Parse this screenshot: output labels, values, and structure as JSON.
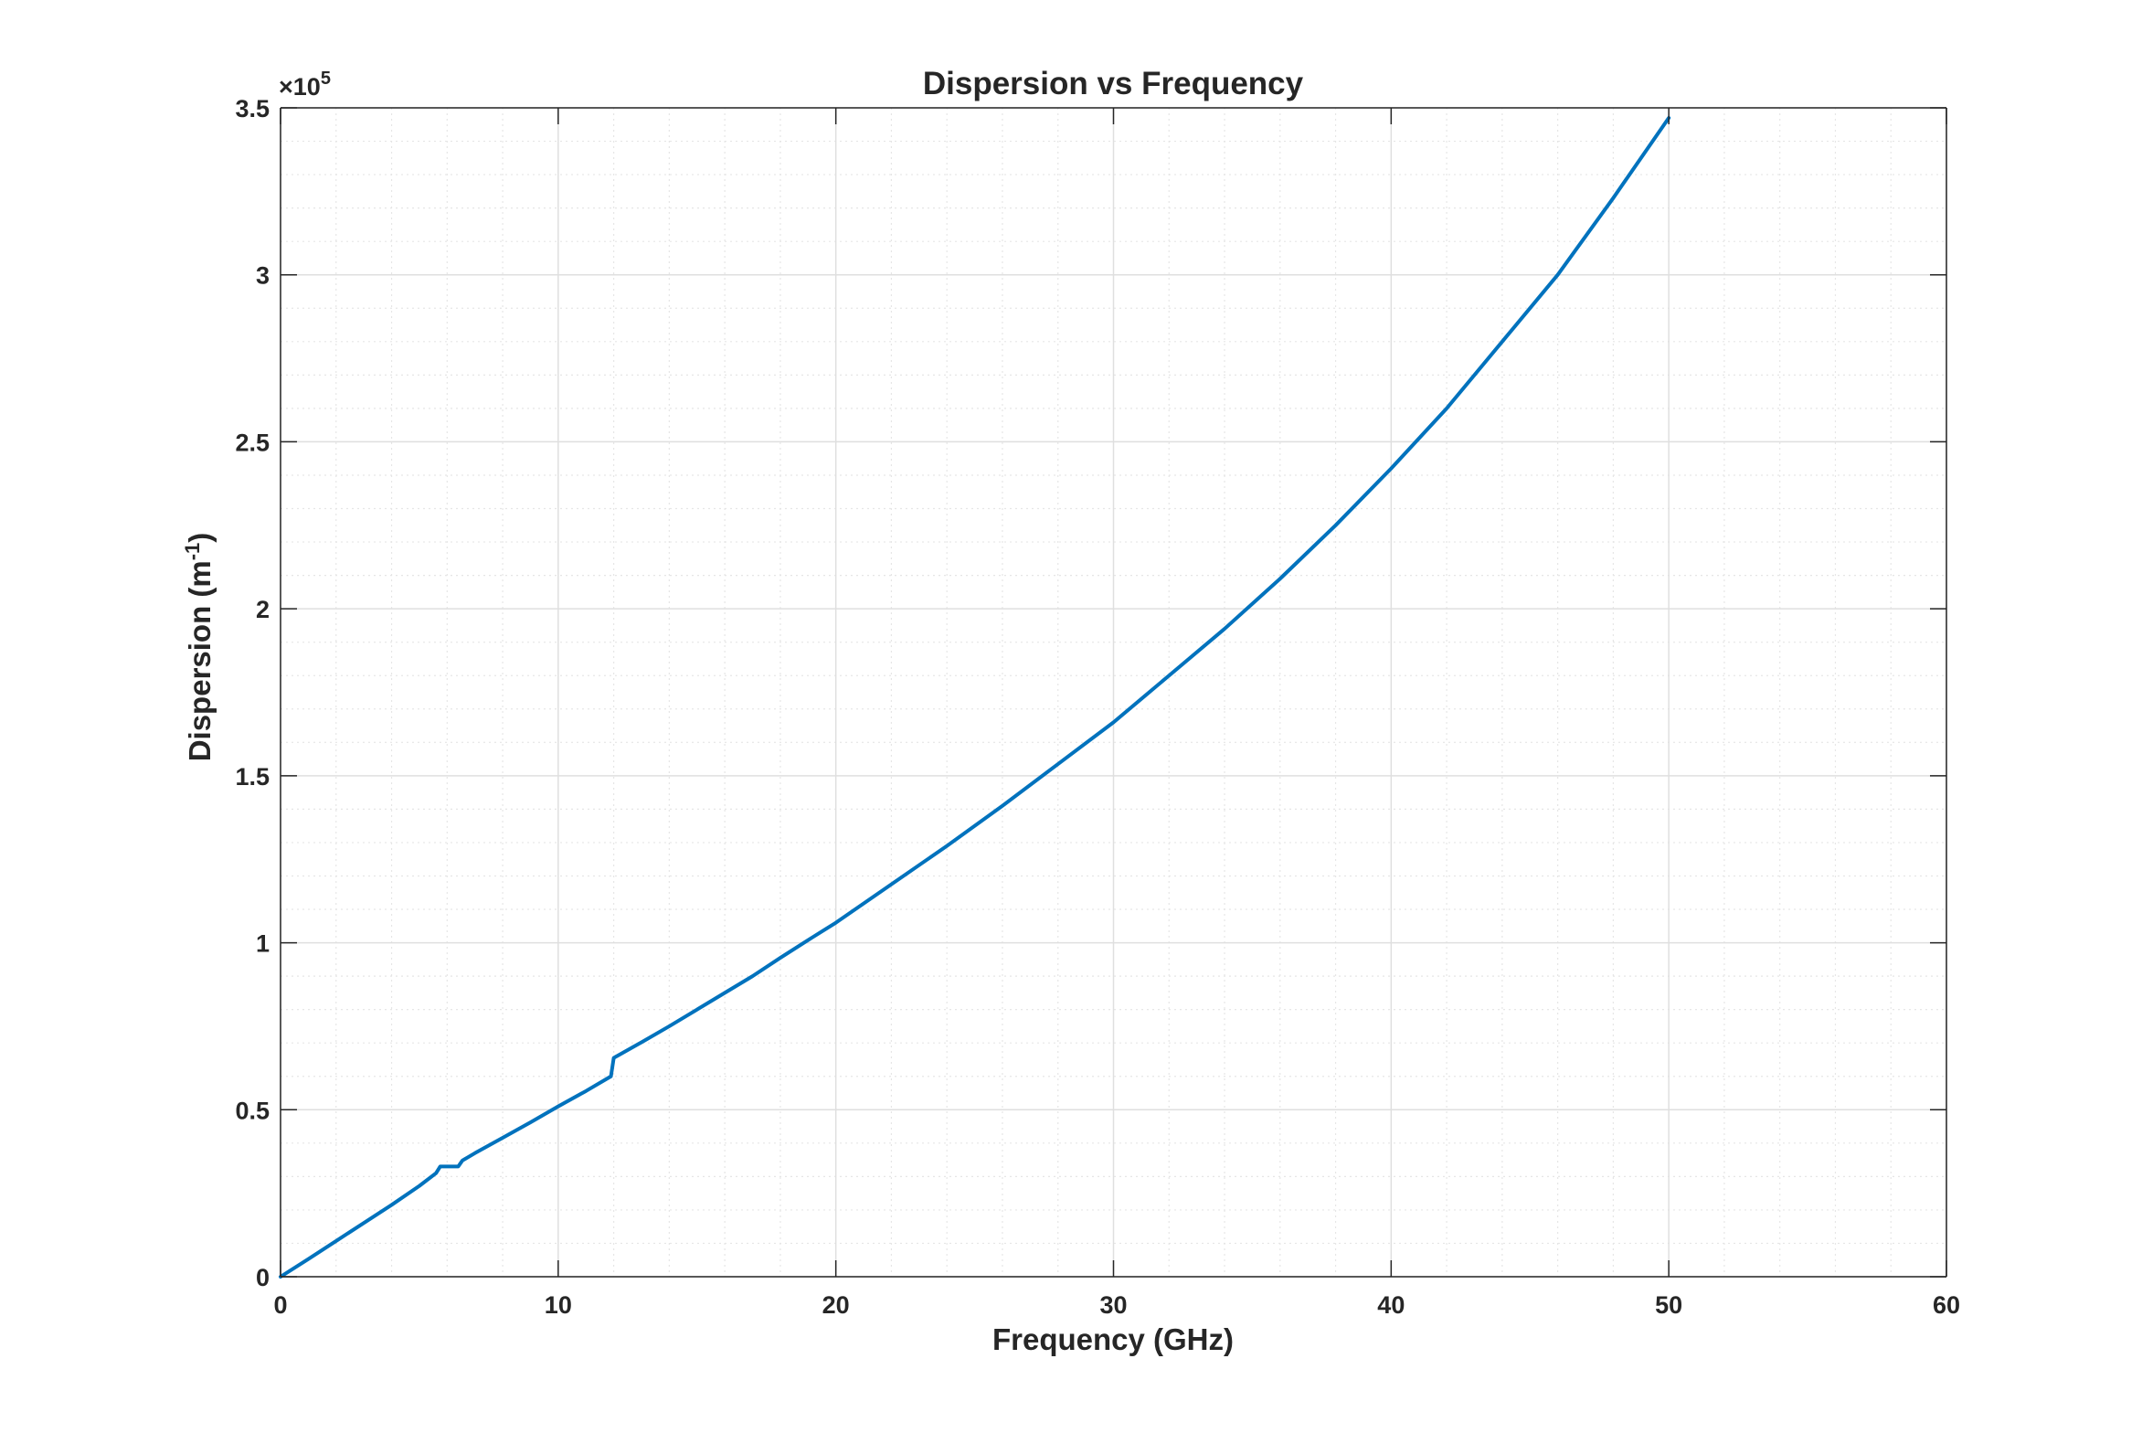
{
  "chart_data": {
    "type": "line",
    "title": "Dispersion vs Frequency",
    "xlabel": "Frequency (GHz)",
    "ylabel": {
      "main": "Dispersion  (m",
      "sup": "-1",
      "end": ")"
    },
    "y_exponent": {
      "prefix": "×10",
      "power": "5"
    },
    "xlim": [
      0,
      60
    ],
    "ylim": [
      0,
      3.5
    ],
    "x_ticks": [
      0,
      10,
      20,
      30,
      40,
      50,
      60
    ],
    "x_tick_labels": [
      "0",
      "10",
      "20",
      "30",
      "40",
      "50",
      "60"
    ],
    "y_ticks": [
      0,
      0.5,
      1,
      1.5,
      2,
      2.5,
      3,
      3.5
    ],
    "y_tick_labels": [
      "0",
      "0.5",
      "1",
      "1.5",
      "2",
      "2.5",
      "3",
      "3.5"
    ],
    "grid": true,
    "minor_grid": true,
    "line_color": "#0072BD",
    "series": [
      {
        "x": [
          0,
          1,
          2,
          3,
          4,
          5,
          5.6,
          5.75,
          6.4,
          6.55,
          7,
          8,
          9,
          10,
          11,
          11.9,
          12.0,
          12.1,
          13,
          14,
          15,
          16,
          17,
          18,
          19,
          20,
          22,
          24,
          26,
          28,
          30,
          32,
          34,
          36,
          38,
          40,
          42,
          44,
          46,
          48,
          50
        ],
        "y": [
          0,
          0.053,
          0.107,
          0.161,
          0.215,
          0.272,
          0.31,
          0.33,
          0.33,
          0.348,
          0.37,
          0.416,
          0.462,
          0.51,
          0.556,
          0.6,
          0.655,
          0.66,
          0.702,
          0.75,
          0.8,
          0.85,
          0.9,
          0.955,
          1.008,
          1.06,
          1.175,
          1.29,
          1.41,
          1.535,
          1.66,
          1.8,
          1.94,
          2.09,
          2.25,
          2.42,
          2.6,
          2.8,
          3.0,
          3.23,
          3.47
        ]
      }
    ]
  }
}
